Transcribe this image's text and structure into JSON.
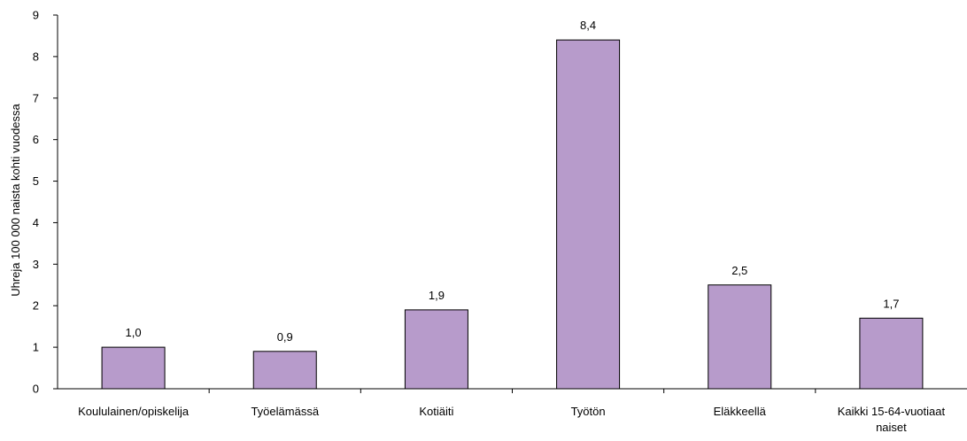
{
  "chart_data": {
    "type": "bar",
    "title": "",
    "xlabel": "",
    "ylabel": "Uhreja 100 000 naista kohti vuodessa",
    "ylim": [
      0,
      9
    ],
    "yticks": [
      "0",
      "1",
      "2",
      "3",
      "4",
      "5",
      "6",
      "7",
      "8",
      "9"
    ],
    "grid": false,
    "bar_color": "#b79bcb",
    "bar_edge_color": "#000000",
    "categories": [
      [
        "Koululainen/opiskelija"
      ],
      [
        "Työelämässä"
      ],
      [
        "Kotiäiti"
      ],
      [
        "Työtön"
      ],
      [
        "Eläkkeellä"
      ],
      [
        "Kaikki 15-64-vuotiaat",
        "naiset"
      ]
    ],
    "values": [
      1.0,
      0.9,
      1.9,
      8.4,
      2.5,
      1.7
    ],
    "data_labels": [
      "1,0",
      "0,9",
      "1,9",
      "8,4",
      "2,5",
      "1,7"
    ]
  }
}
